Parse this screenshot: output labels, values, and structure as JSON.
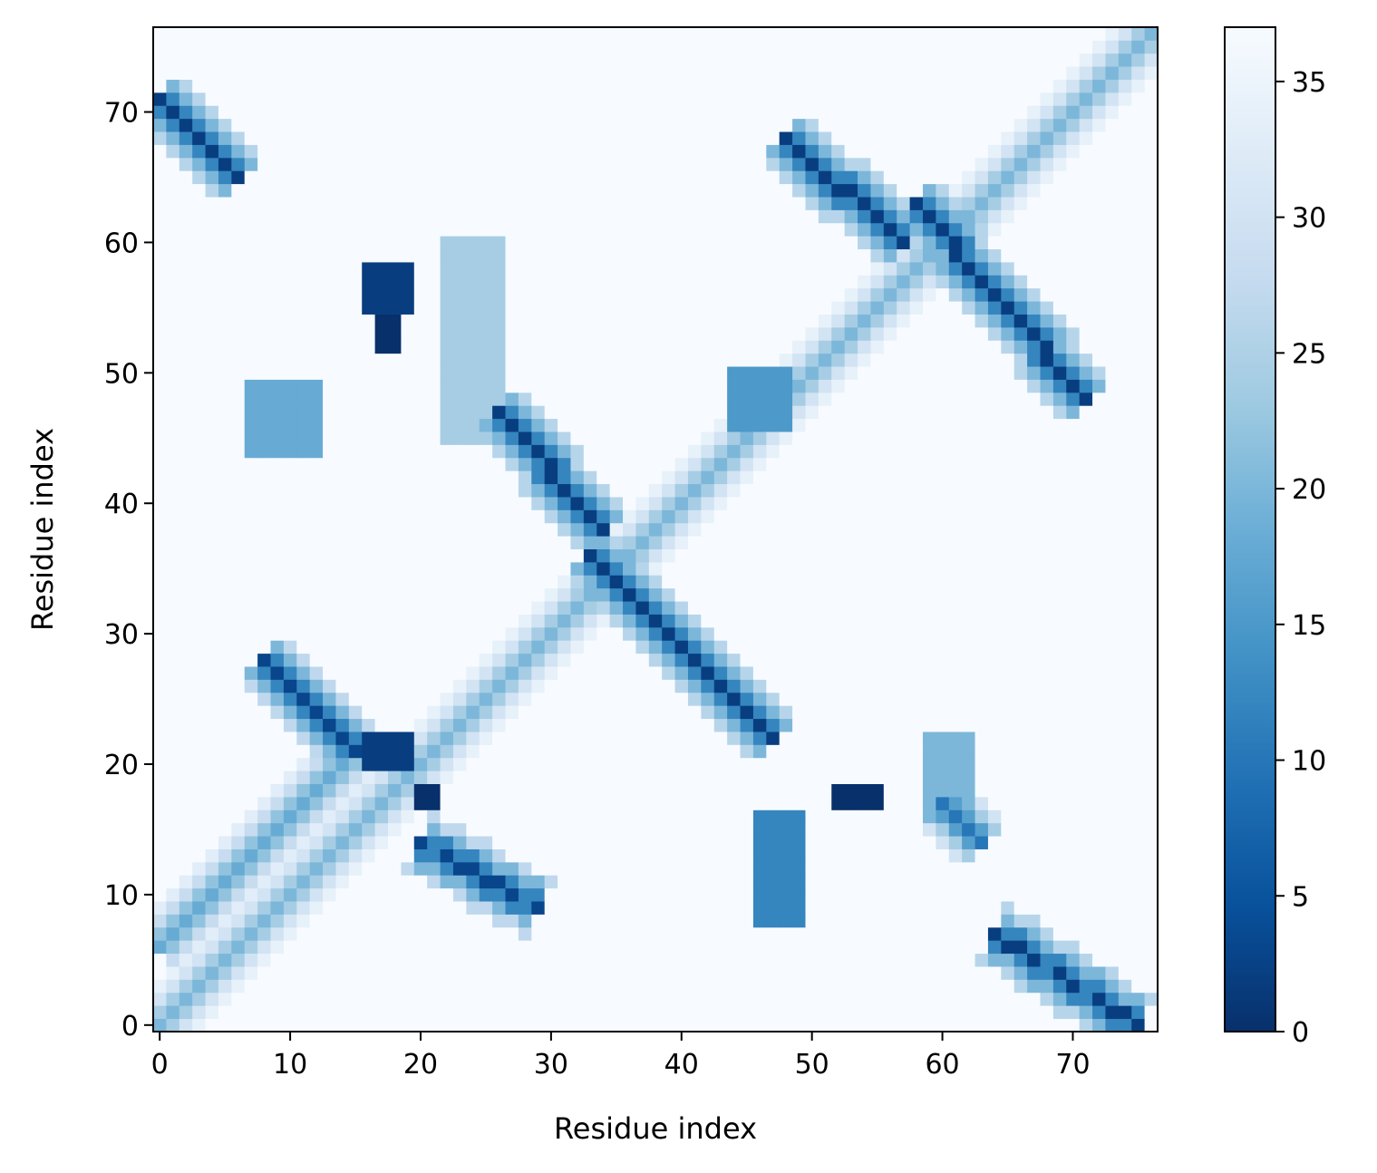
{
  "chart_data": {
    "type": "heatmap",
    "title": "",
    "xlabel": "Residue index",
    "ylabel": "Residue index",
    "n": 77,
    "xlim": [
      -0.5,
      76.5
    ],
    "ylim": [
      -0.5,
      76.5
    ],
    "x_ticks": [
      0,
      10,
      20,
      30,
      40,
      50,
      60,
      70
    ],
    "x_tick_labels": [
      "0",
      "10",
      "20",
      "30",
      "40",
      "50",
      "60",
      "70"
    ],
    "y_ticks": [
      0,
      10,
      20,
      30,
      40,
      50,
      60,
      70
    ],
    "y_tick_labels": [
      "0",
      "10",
      "20",
      "30",
      "40",
      "50",
      "60",
      "70"
    ],
    "colorbar": {
      "cmap": "Blues_r",
      "vmin": 0,
      "vmax": 37,
      "ticks": [
        0,
        5,
        10,
        15,
        20,
        25,
        30,
        35
      ],
      "tick_labels": [
        "0",
        "5",
        "10",
        "15",
        "20",
        "25",
        "30",
        "35"
      ]
    },
    "background_value": 37,
    "series": [
      {
        "from": [
          0,
          0
        ],
        "to": [
          76,
          76
        ],
        "profile": [
          20,
          24,
          30,
          34
        ],
        "note": "main diagonal band"
      },
      {
        "from": [
          0,
          71
        ],
        "to": [
          6,
          65
        ],
        "profile": [
          2,
          12,
          20,
          26
        ]
      },
      {
        "from": [
          0,
          6
        ],
        "to": [
          15,
          21
        ],
        "profile": [
          18,
          22,
          28,
          33
        ]
      },
      {
        "from": [
          8,
          28
        ],
        "to": [
          15,
          21
        ],
        "profile": [
          3,
          12,
          20,
          27
        ]
      },
      {
        "from": [
          20,
          14
        ],
        "to": [
          29,
          9
        ],
        "profile": [
          3,
          12,
          20,
          27
        ]
      },
      {
        "from": [
          26,
          47
        ],
        "to": [
          34,
          38
        ],
        "profile": [
          2,
          12,
          20,
          26
        ]
      },
      {
        "from": [
          33,
          36
        ],
        "to": [
          47,
          22
        ],
        "profile": [
          2,
          12,
          20,
          26
        ]
      },
      {
        "from": [
          48,
          68
        ],
        "to": [
          57,
          60
        ],
        "profile": [
          2,
          12,
          20,
          26
        ]
      },
      {
        "from": [
          58,
          63
        ],
        "to": [
          71,
          48
        ],
        "profile": [
          2,
          12,
          20,
          26
        ]
      },
      {
        "from": [
          60,
          17
        ],
        "to": [
          63,
          14
        ],
        "profile": [
          10,
          16,
          24,
          30
        ]
      },
      {
        "from": [
          64,
          7
        ],
        "to": [
          75,
          0
        ],
        "profile": [
          2,
          12,
          20,
          26
        ]
      }
    ],
    "patches": [
      {
        "x": [
          16,
          19
        ],
        "y": [
          55,
          58
        ],
        "value": 2
      },
      {
        "x": [
          17,
          18
        ],
        "y": [
          52,
          54
        ],
        "value": 0
      },
      {
        "x": [
          22,
          26
        ],
        "y": [
          45,
          60
        ],
        "value": 24
      },
      {
        "x": [
          7,
          12
        ],
        "y": [
          44,
          49
        ],
        "value": 18
      },
      {
        "x": [
          16,
          19
        ],
        "y": [
          20,
          22
        ],
        "value": 2
      },
      {
        "x": [
          20,
          21
        ],
        "y": [
          17,
          18
        ],
        "value": 0
      },
      {
        "x": [
          52,
          55
        ],
        "y": [
          17,
          18
        ],
        "value": 0
      },
      {
        "x": [
          46,
          49
        ],
        "y": [
          8,
          16
        ],
        "value": 12
      },
      {
        "x": [
          59,
          62
        ],
        "y": [
          16,
          22
        ],
        "value": 20
      },
      {
        "x": [
          44,
          48
        ],
        "y": [
          46,
          50
        ],
        "value": 15
      }
    ]
  }
}
